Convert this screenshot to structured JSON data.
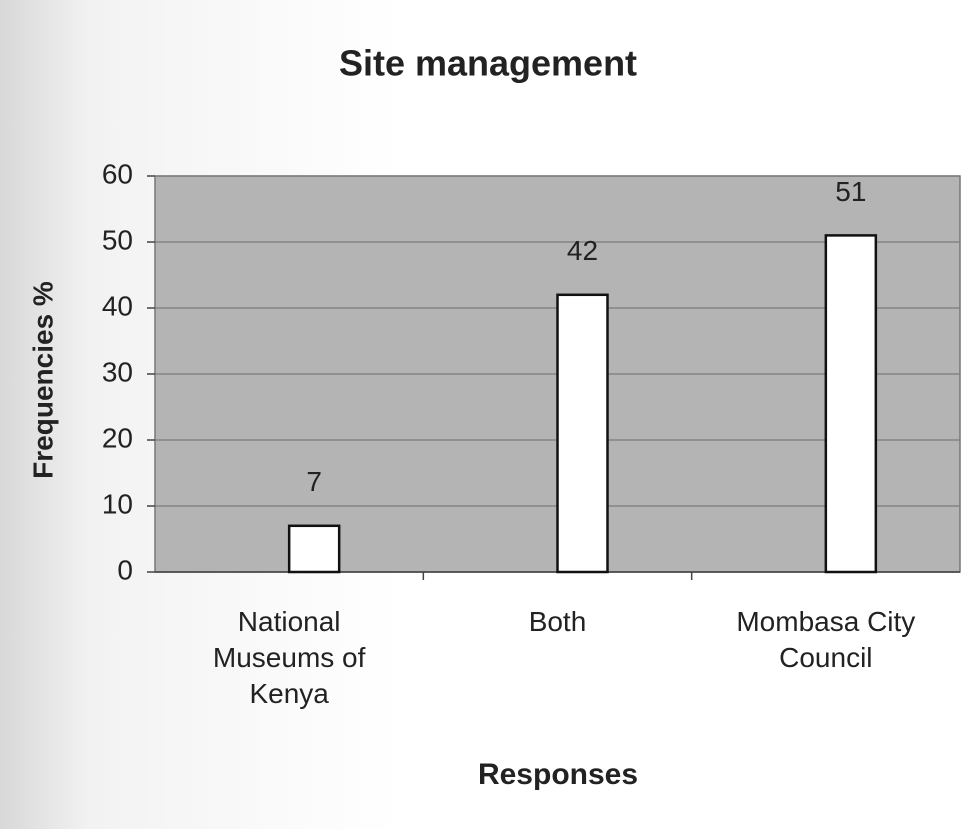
{
  "chart_data": {
    "type": "bar",
    "title": "Site management",
    "categories": [
      "National Museums of Kenya",
      "Both",
      "Mombasa City Council"
    ],
    "values": [
      7,
      42,
      51
    ],
    "color": "#ffffff",
    "xlabel": "Responses",
    "ylabel": "Frequencies %",
    "ylim": [
      0,
      60
    ],
    "yticks": [
      0,
      10,
      20,
      30,
      40,
      50,
      60
    ],
    "grid": true
  }
}
